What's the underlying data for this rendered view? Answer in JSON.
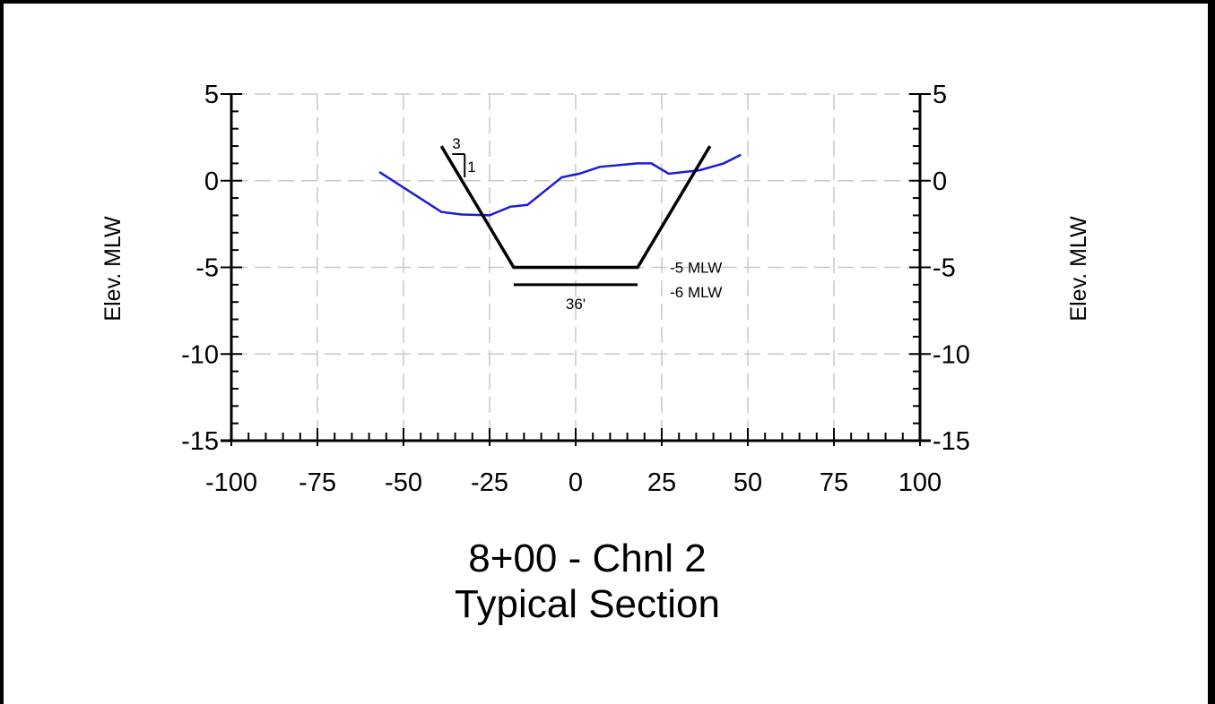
{
  "chart_data": {
    "type": "line",
    "title": "8+00 - Chnl 2",
    "subtitle": "Typical Section",
    "ylabel_left": "Elev. MLW",
    "ylabel_right": "Elev. MLW",
    "xlabel": "",
    "xlim": [
      -100,
      100
    ],
    "ylim": [
      -15,
      5
    ],
    "x_ticks": [
      -100,
      -75,
      -50,
      -25,
      0,
      25,
      50,
      75,
      100
    ],
    "y_ticks": [
      5,
      0,
      -5,
      -10,
      -15
    ],
    "grid": true,
    "series": [
      {
        "color": "#1a1adb",
        "x": [
          -57,
          -39,
          -33,
          -25,
          -19,
          -14,
          -4,
          1,
          7,
          18,
          22,
          27,
          36,
          43,
          48
        ],
        "y": [
          0.5,
          -1.8,
          -1.95,
          -2.0,
          -1.5,
          -1.4,
          0.2,
          0.4,
          0.8,
          1.0,
          1.0,
          0.4,
          0.6,
          1.0,
          1.5
        ]
      },
      {
        "color": "#000000",
        "x": [
          -39,
          -18,
          18,
          39
        ],
        "y": [
          2,
          -5,
          -5,
          2
        ]
      }
    ],
    "annotations": {
      "design_depth": "-5 MLW",
      "over_depth": "-6 MLW",
      "bottom_width": "36'",
      "slope_run": "3",
      "slope_rise": "1"
    }
  }
}
